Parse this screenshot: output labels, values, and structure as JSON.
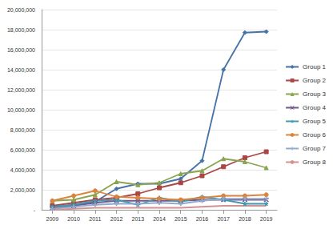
{
  "chart_data": {
    "type": "line",
    "categories": [
      "2009",
      "2010",
      "2011",
      "2012",
      "2013",
      "2014",
      "2015",
      "2016",
      "2017",
      "2018",
      "2019"
    ],
    "series": [
      {
        "name": "Group 1",
        "color": "#4572a7",
        "marker": "diamond",
        "values": [
          300000,
          500000,
          800000,
          2100000,
          2600000,
          2600000,
          3100000,
          4900000,
          14000000,
          17700000,
          17800000
        ]
      },
      {
        "name": "Group 2",
        "color": "#aa4643",
        "marker": "square",
        "values": [
          400000,
          700000,
          1000000,
          1200000,
          1600000,
          2200000,
          2700000,
          3400000,
          4300000,
          5200000,
          5800000
        ]
      },
      {
        "name": "Group 3",
        "color": "#89a54e",
        "marker": "triangle",
        "values": [
          900000,
          1000000,
          1500000,
          2800000,
          2500000,
          2700000,
          3600000,
          3900000,
          5100000,
          4800000,
          4200000
        ]
      },
      {
        "name": "Group 4",
        "color": "#71588f",
        "marker": "x",
        "values": [
          200000,
          400000,
          700000,
          900000,
          900000,
          900000,
          900000,
          1000000,
          1000000,
          1000000,
          1000000
        ]
      },
      {
        "name": "Group 5",
        "color": "#4198af",
        "marker": "star",
        "values": [
          300000,
          500000,
          900000,
          1000000,
          500000,
          1200000,
          800000,
          1300000,
          1000000,
          600000,
          600000
        ]
      },
      {
        "name": "Group 6",
        "color": "#db843d",
        "marker": "circle",
        "values": [
          900000,
          1400000,
          1900000,
          1300000,
          1200000,
          1100000,
          1000000,
          1200000,
          1400000,
          1400000,
          1500000
        ]
      },
      {
        "name": "Group 7",
        "color": "#93a9cf",
        "marker": "plus",
        "values": [
          100000,
          300000,
          500000,
          600000,
          600000,
          700000,
          600000,
          900000,
          1100000,
          1100000,
          1100000
        ]
      },
      {
        "name": "Group 8",
        "color": "#d19392",
        "marker": "none",
        "values": [
          0,
          100000,
          200000,
          200000,
          200000,
          200000,
          200000,
          300000,
          400000,
          400000,
          400000
        ]
      }
    ],
    "ylim": [
      0,
      20000000
    ],
    "yticks": [
      {
        "value": 0,
        "label": "-"
      },
      {
        "value": 2000000,
        "label": "2,000,000"
      },
      {
        "value": 4000000,
        "label": "4,000,000"
      },
      {
        "value": 6000000,
        "label": "6,000,000"
      },
      {
        "value": 8000000,
        "label": "8,000,000"
      },
      {
        "value": 10000000,
        "label": "10,000,000"
      },
      {
        "value": 12000000,
        "label": "12,000,000"
      },
      {
        "value": 14000000,
        "label": "14,000,000"
      },
      {
        "value": 16000000,
        "label": "16,000,000"
      },
      {
        "value": 18000000,
        "label": "18,000,000"
      },
      {
        "value": 20000000,
        "label": "20,000,000"
      }
    ],
    "grid": true,
    "legend": "right"
  }
}
